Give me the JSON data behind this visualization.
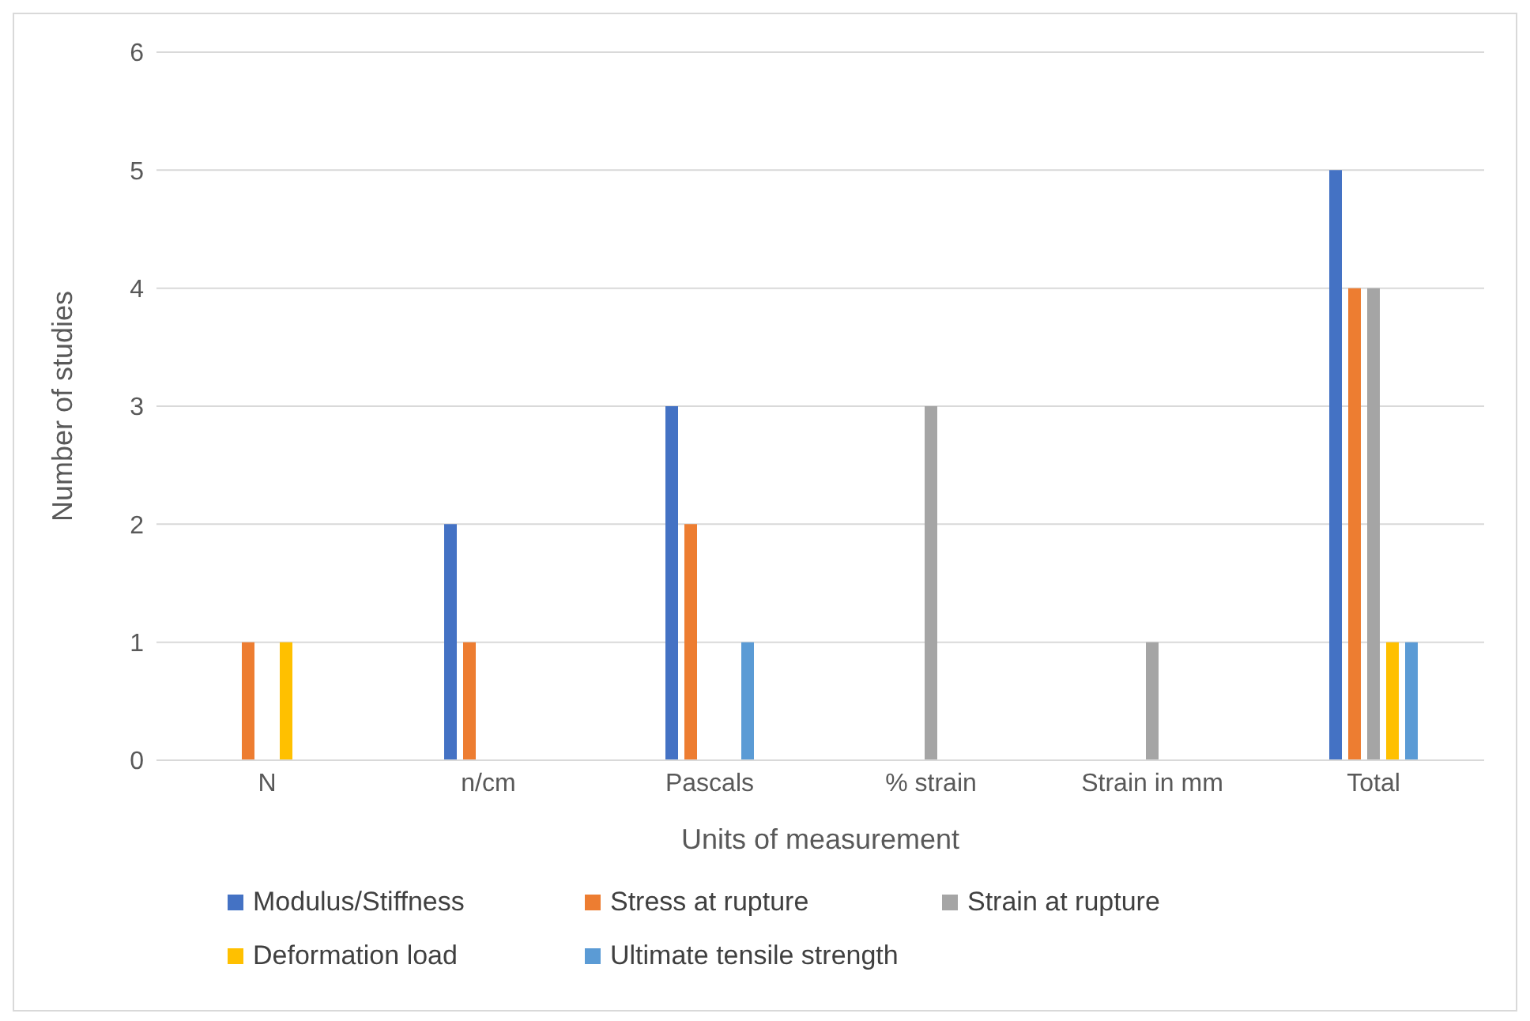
{
  "chart_data": {
    "type": "bar",
    "xlabel": "Units of measurement",
    "ylabel": "Number of studies",
    "categories": [
      "N",
      "n/cm",
      "Pascals",
      "% strain",
      "Strain in mm",
      "Total"
    ],
    "series": [
      {
        "name": "Modulus/Stiffness",
        "color": "#4472c4",
        "values": [
          0,
          2,
          3,
          0,
          0,
          5
        ]
      },
      {
        "name": "Stress at rupture",
        "color": "#ed7d31",
        "values": [
          1,
          1,
          2,
          0,
          0,
          4
        ]
      },
      {
        "name": "Strain at rupture",
        "color": "#a5a5a5",
        "values": [
          0,
          0,
          0,
          3,
          1,
          4
        ]
      },
      {
        "name": "Deformation load",
        "color": "#ffc000",
        "values": [
          1,
          0,
          0,
          0,
          0,
          1
        ]
      },
      {
        "name": "Ultimate tensile strength",
        "color": "#5b9bd5",
        "values": [
          0,
          0,
          1,
          0,
          0,
          1
        ]
      }
    ],
    "ylim": [
      0,
      6
    ],
    "yticks": [
      0,
      1,
      2,
      3,
      4,
      5,
      6
    ],
    "grid": "y",
    "legend": "bottom"
  }
}
